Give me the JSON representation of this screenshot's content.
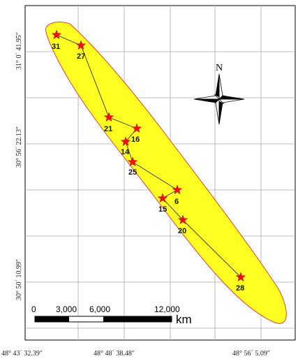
{
  "map": {
    "lon_ticks": [
      "48° 43´ 32.39″",
      "48° 48´ 38.48″",
      "48° 56´ 5.09″"
    ],
    "lat_ticks": [
      "31° 0´ 41.95″",
      "30° 56´ 22.13″",
      "30° 50´ 10.99″"
    ],
    "north_label": "N",
    "points": [
      {
        "id": "31",
        "label": "31"
      },
      {
        "id": "27",
        "label": "27"
      },
      {
        "id": "21",
        "label": "21"
      },
      {
        "id": "16",
        "label": "16"
      },
      {
        "id": "14",
        "label": "14"
      },
      {
        "id": "25",
        "label": "25"
      },
      {
        "id": "6",
        "label": "6"
      },
      {
        "id": "15",
        "label": "15"
      },
      {
        "id": "20",
        "label": "20"
      },
      {
        "id": "28",
        "label": "28"
      }
    ],
    "route_order": [
      "31",
      "27",
      "21",
      "16",
      "14",
      "25",
      "6",
      "15",
      "20",
      "28"
    ],
    "scale": {
      "labels": [
        "0",
        "3,000",
        "6,000",
        "12,000"
      ],
      "unit": "km"
    },
    "colors": {
      "zone_fill": "#ffff22",
      "zone_stroke": "#e0443a",
      "star": "#ee1111"
    }
  }
}
